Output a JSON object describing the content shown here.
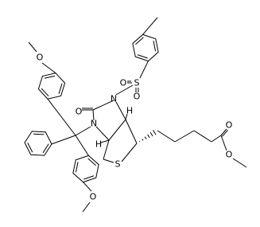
{
  "atoms": [
    {
      "label": "O"
    },
    {
      "label": "O"
    },
    {
      "label": "N"
    },
    {
      "label": "N"
    },
    {
      "label": "S"
    },
    {
      "label": "O"
    },
    {
      "label": "O"
    },
    {
      "label": "H"
    },
    {
      "label": "H"
    },
    {
      "label": "S"
    },
    {
      "label": "O"
    },
    {
      "label": "O"
    },
    {
      "label": "O"
    }
  ]
}
